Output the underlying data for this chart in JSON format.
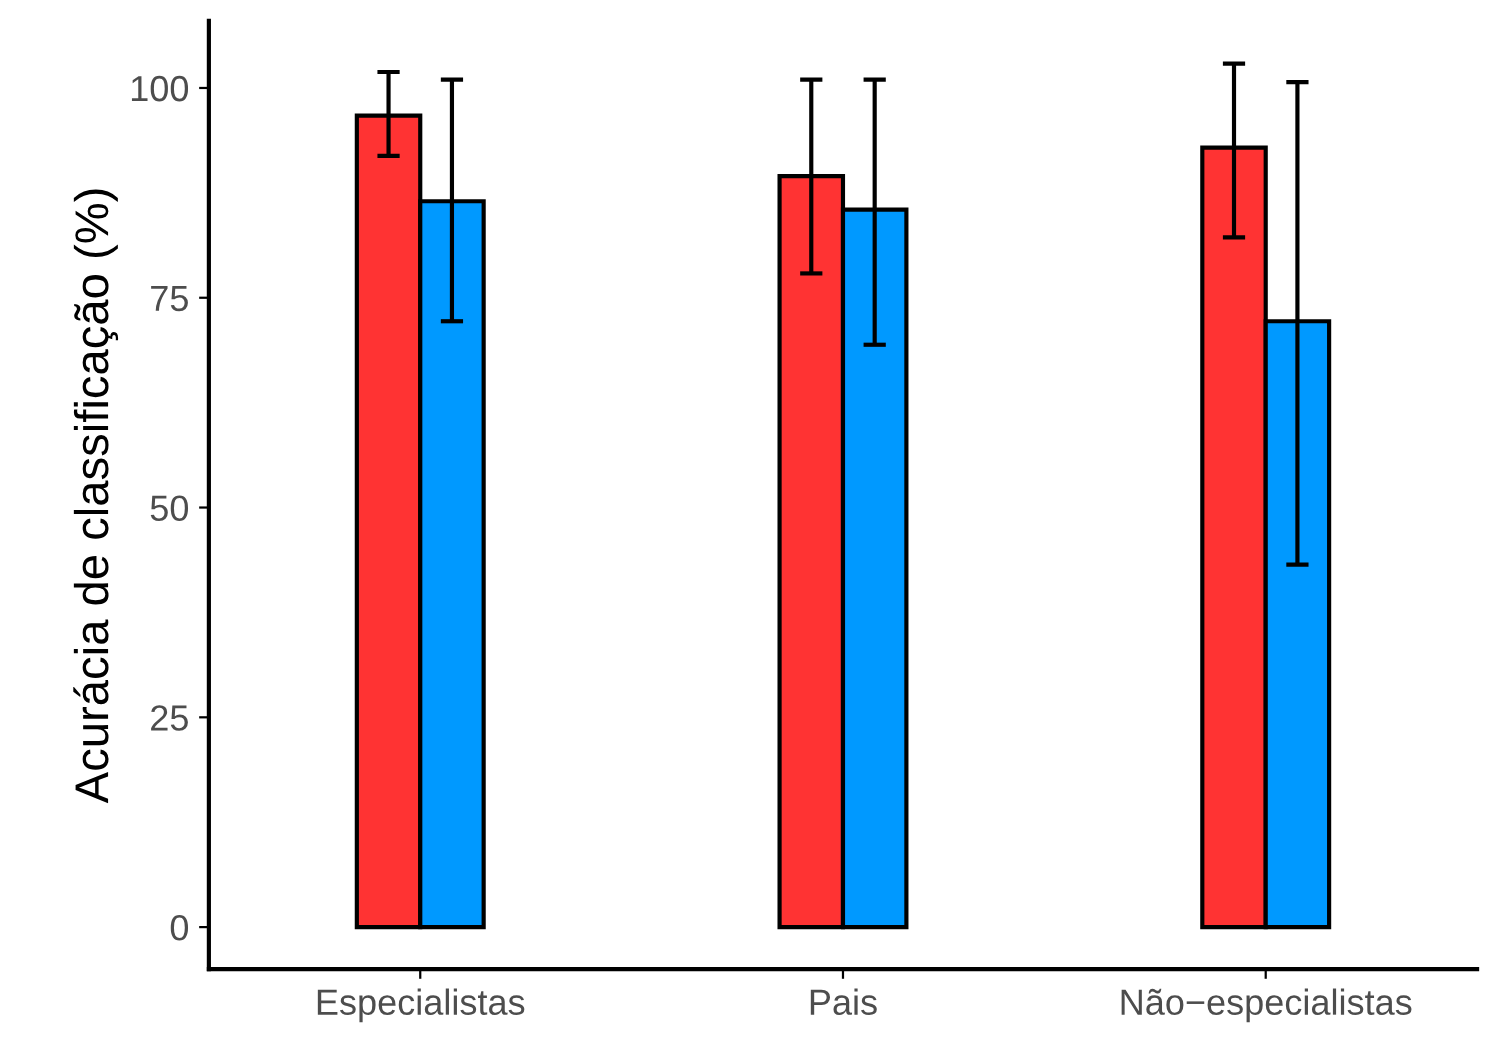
{
  "chart_data": {
    "type": "bar",
    "ylabel": "Acurácia de classificação (%)",
    "categories": [
      "Especialistas",
      "Pais",
      "Não−especialistas"
    ],
    "series": [
      {
        "color": "#ff3333",
        "values": [
          96.7,
          89.5,
          92.9
        ],
        "errors": [
          [
            91.9,
            101.9
          ],
          [
            77.9,
            101
          ],
          [
            82.2,
            102.9
          ]
        ]
      },
      {
        "color": "#0099ff",
        "values": [
          86.5,
          85.5,
          72.2
        ],
        "errors": [
          [
            72.2,
            101
          ],
          [
            69.4,
            101
          ],
          [
            43.2,
            100.7
          ]
        ]
      }
    ],
    "ylim": [
      -5,
      108
    ],
    "yticks": [
      0,
      25,
      50,
      75,
      100
    ],
    "grid": false,
    "legend": false
  }
}
